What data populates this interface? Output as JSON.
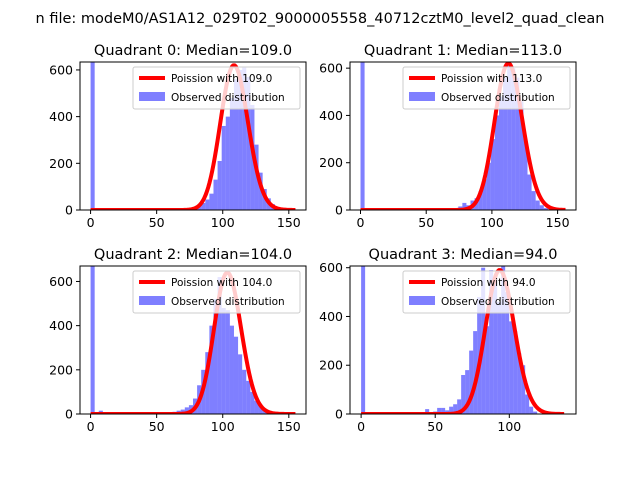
{
  "chart_data": {
    "type": "bar",
    "title": "n file: modeM0/AS1A12_029T02_9000005558_40712cztM0_level2_quad_clean",
    "subplots": [
      {
        "title": "Quadrant 0: Median=109.0",
        "xlim": [
          -8,
          163
        ],
        "ylim": [
          0,
          634
        ],
        "xticks": [
          0,
          50,
          100,
          150
        ],
        "yticks": [
          0,
          200,
          400,
          600
        ],
        "legend": {
          "line": "Poission with 109.0",
          "bar": "Observed distribution",
          "position": "top-right"
        },
        "mu": 109,
        "scale": 16230,
        "hist": {
          "start": 0,
          "width": 3.1,
          "zero_spike": 2000,
          "counts": [
            0,
            0,
            0,
            0,
            0,
            0,
            0,
            0,
            0,
            0,
            0,
            0,
            0,
            0,
            0,
            0,
            0,
            0,
            0,
            1,
            2,
            3,
            4,
            6,
            8,
            12,
            18,
            30,
            45,
            70,
            130,
            210,
            360,
            400,
            480,
            560,
            600,
            610,
            570,
            450,
            280,
            160,
            90,
            50,
            25,
            10,
            4,
            2
          ]
        }
      },
      {
        "title": "Quadrant 1: Median=113.0",
        "xlim": [
          -8,
          164
        ],
        "ylim": [
          0,
          626
        ],
        "xticks": [
          0,
          50,
          100,
          150
        ],
        "yticks": [
          0,
          200,
          400,
          600
        ],
        "legend": {
          "line": "Poission with 113.0",
          "bar": "Observed distribution",
          "position": "top-right"
        },
        "mu": 113,
        "scale": 16530,
        "hist": {
          "start": 0,
          "width": 3.1,
          "zero_spike": 2000,
          "counts": [
            0,
            0,
            0,
            0,
            0,
            0,
            0,
            0,
            0,
            0,
            0,
            0,
            0,
            0,
            0,
            0,
            0,
            0,
            0,
            0,
            1,
            3,
            5,
            8,
            15,
            30,
            20,
            40,
            50,
            80,
            130,
            200,
            300,
            400,
            480,
            560,
            610,
            600,
            560,
            460,
            300,
            150,
            80,
            40,
            20,
            8,
            3
          ]
        }
      },
      {
        "title": "Quadrant 2: Median=104.0",
        "xlim": [
          -8,
          163
        ],
        "ylim": [
          0,
          670
        ],
        "xticks": [
          0,
          50,
          100,
          150
        ],
        "yticks": [
          0,
          200,
          400,
          600
        ],
        "legend": {
          "line": "Poission with 104.0",
          "bar": "Observed distribution",
          "position": "top-right"
        },
        "mu": 104,
        "scale": 16370,
        "hist": {
          "start": 0,
          "width": 3.1,
          "zero_spike": 2000,
          "counts": [
            0,
            0,
            15,
            0,
            0,
            5,
            0,
            0,
            0,
            0,
            0,
            0,
            0,
            0,
            0,
            1,
            2,
            3,
            5,
            8,
            10,
            15,
            20,
            30,
            40,
            70,
            130,
            200,
            280,
            400,
            520,
            620,
            480,
            470,
            400,
            350,
            270,
            200,
            150,
            100,
            60,
            40,
            20,
            10,
            5
          ]
        }
      },
      {
        "title": "Quadrant 3: Median=94.0",
        "xlim": [
          -7.5,
          145
        ],
        "ylim": [
          0,
          607
        ],
        "xticks": [
          0,
          50,
          100
        ],
        "yticks": [
          0,
          200,
          400,
          600
        ],
        "legend": {
          "line": "Poission with 94.0",
          "bar": "Observed distribution",
          "position": "top-right"
        },
        "mu": 94,
        "scale": 14350,
        "hist": {
          "start": 0,
          "width": 2.7,
          "zero_spike": 2000,
          "counts": [
            0,
            0,
            0,
            0,
            0,
            5,
            0,
            0,
            5,
            0,
            0,
            0,
            0,
            0,
            0,
            0,
            20,
            0,
            10,
            25,
            25,
            15,
            30,
            40,
            60,
            160,
            180,
            260,
            340,
            480,
            600,
            360,
            590,
            560,
            460,
            620,
            500,
            380,
            340,
            250,
            200,
            80,
            30,
            10,
            0
          ]
        }
      }
    ]
  }
}
